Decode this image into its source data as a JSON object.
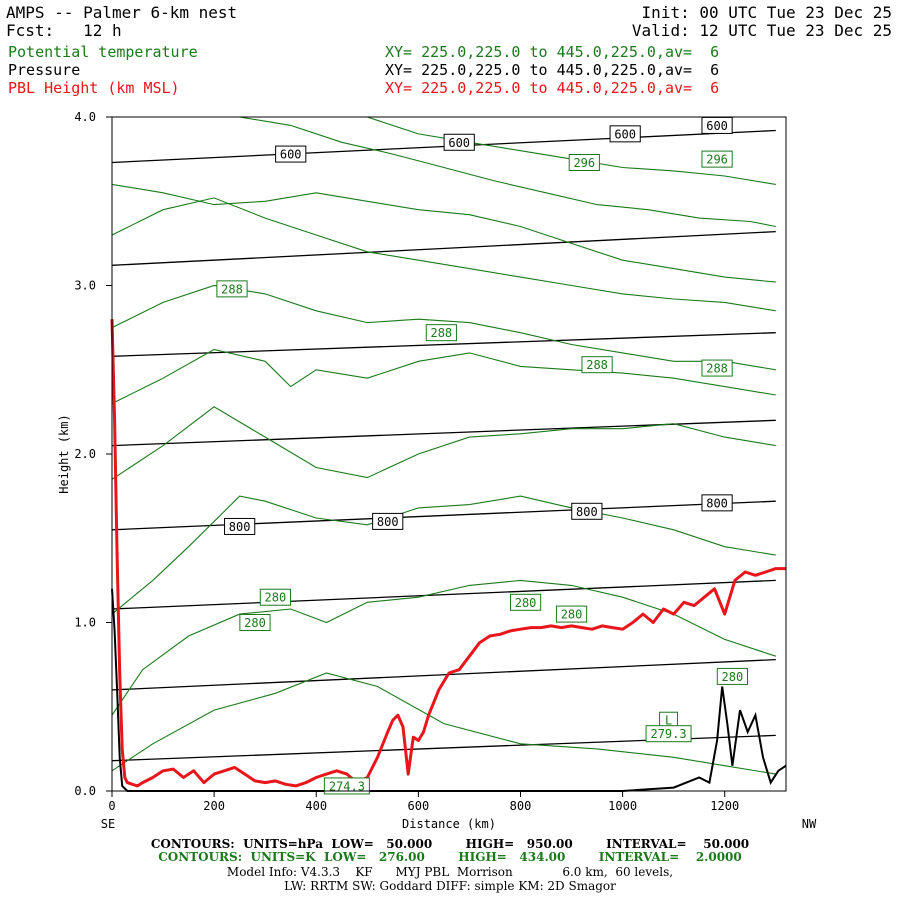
{
  "header": {
    "title": "AMPS -- Palmer 6-km nest",
    "init": "Init: 00 UTC Tue 23 Dec 25",
    "fcst": "Fcst:   12 h",
    "valid": "Valid: 12 UTC Tue 23 Dec 25",
    "field1": "Potential temperature",
    "field2": "Pressure",
    "field3": "PBL Height (km MSL)",
    "xy1": "XY= 225.0,225.0 to 445.0,225.0,av=  6",
    "xy2": "XY= 225.0,225.0 to 445.0,225.0,av=  6",
    "xy3": "XY= 225.0,225.0 to 445.0,225.0,av=  6"
  },
  "colors": {
    "theta": "#1a7a1a",
    "pressure": "#000000",
    "pbl": "#e8151a"
  },
  "footer": {
    "line1": "CONTOURS:  UNITS=hPa  LOW=   50.000        HIGH=   950.00        INTERVAL=    50.000",
    "line2": "CONTOURS:  UNITS=K  LOW=   276.00        HIGH=   434.00        INTERVAL=    2.0000",
    "line3": "Model Info: V4.3.3    KF      MYJ PBL  Morrison             6.0 km,  60 levels,",
    "line4": "LW: RRTM SW: Goddard DIFF: simple KM: 2D Smagor"
  },
  "chart_data": {
    "type": "line",
    "title": "",
    "xlabel": "Distance (km)",
    "ylabel": "Height (km)",
    "xlim": [
      0,
      1320
    ],
    "ylim": [
      0,
      4
    ],
    "xticks": [
      0,
      200,
      400,
      600,
      800,
      1000,
      1200
    ],
    "yticks": [
      0.0,
      1.0,
      2.0,
      3.0,
      4.0
    ],
    "ytick_labels": [
      "0.0",
      "1.0",
      "2.0",
      "3.0",
      "4.0"
    ],
    "x_end_labels": {
      "left": "SE",
      "right": "NW"
    },
    "pressure_contours_hPa": [
      {
        "level": 950,
        "x": [
          0,
          1300
        ],
        "y": [
          0.18,
          0.33
        ]
      },
      {
        "level": 900,
        "x": [
          0,
          1300
        ],
        "y": [
          0.6,
          0.78
        ]
      },
      {
        "level": 850,
        "x": [
          0,
          1300
        ],
        "y": [
          1.08,
          1.25
        ]
      },
      {
        "level": 800,
        "x": [
          0,
          1300
        ],
        "y": [
          1.55,
          1.72
        ]
      },
      {
        "level": 750,
        "x": [
          0,
          1300
        ],
        "y": [
          2.05,
          2.2
        ]
      },
      {
        "level": 700,
        "x": [
          0,
          1300
        ],
        "y": [
          2.58,
          2.72
        ]
      },
      {
        "level": 650,
        "x": [
          0,
          1300
        ],
        "y": [
          3.12,
          3.32
        ]
      },
      {
        "level": 600,
        "x": [
          0,
          1300
        ],
        "y": [
          3.73,
          3.92
        ]
      }
    ],
    "pressure_labels": [
      {
        "text": "600",
        "x": 350,
        "y": 3.78
      },
      {
        "text": "600",
        "x": 680,
        "y": 3.85
      },
      {
        "text": "600",
        "x": 1005,
        "y": 3.9
      },
      {
        "text": "600",
        "x": 1185,
        "y": 3.95
      },
      {
        "text": "800",
        "x": 250,
        "y": 1.57
      },
      {
        "text": "800",
        "x": 540,
        "y": 1.6
      },
      {
        "text": "800",
        "x": 930,
        "y": 1.66
      },
      {
        "text": "800",
        "x": 1185,
        "y": 1.71
      }
    ],
    "theta_contours_K": [
      {
        "x": [
          0,
          80,
          200,
          320,
          420,
          520,
          650,
          800,
          950,
          1100,
          1200,
          1300
        ],
        "y": [
          0.12,
          0.28,
          0.48,
          0.58,
          0.7,
          0.62,
          0.4,
          0.28,
          0.25,
          0.2,
          0.15,
          0.1
        ]
      },
      {
        "x": [
          0,
          60,
          150,
          250,
          350,
          420,
          500,
          600,
          700,
          800,
          900,
          1000,
          1100,
          1200,
          1300
        ],
        "y": [
          0.45,
          0.72,
          0.92,
          1.05,
          1.08,
          1.0,
          1.12,
          1.15,
          1.22,
          1.25,
          1.22,
          1.15,
          1.05,
          0.9,
          0.8
        ]
      },
      {
        "x": [
          0,
          80,
          150,
          250,
          300,
          400,
          500,
          600,
          700,
          800,
          900,
          1000,
          1100,
          1200,
          1300
        ],
        "y": [
          1.05,
          1.25,
          1.45,
          1.75,
          1.72,
          1.62,
          1.58,
          1.68,
          1.7,
          1.75,
          1.68,
          1.62,
          1.55,
          1.45,
          1.4
        ]
      },
      {
        "x": [
          0,
          100,
          200,
          300,
          400,
          500,
          600,
          700,
          800,
          900,
          1000,
          1100,
          1200,
          1300
        ],
        "y": [
          1.85,
          2.05,
          2.28,
          2.1,
          1.92,
          1.86,
          2.0,
          2.1,
          2.12,
          2.15,
          2.15,
          2.18,
          2.1,
          2.05
        ]
      },
      {
        "x": [
          0,
          100,
          200,
          300,
          350,
          400,
          500,
          600,
          700,
          800,
          900,
          1000,
          1100,
          1200,
          1300
        ],
        "y": [
          2.3,
          2.45,
          2.62,
          2.55,
          2.4,
          2.5,
          2.45,
          2.55,
          2.6,
          2.52,
          2.5,
          2.48,
          2.45,
          2.4,
          2.35
        ]
      },
      {
        "x": [
          0,
          100,
          200,
          300,
          400,
          500,
          600,
          700,
          800,
          900,
          1000,
          1100,
          1200,
          1300
        ],
        "y": [
          2.75,
          2.9,
          3.0,
          2.95,
          2.85,
          2.78,
          2.8,
          2.78,
          2.72,
          2.65,
          2.6,
          2.55,
          2.55,
          2.5
        ]
      },
      {
        "x": [
          0,
          100,
          200,
          300,
          400,
          500,
          600,
          700,
          800,
          900,
          1000,
          1100,
          1200,
          1300
        ],
        "y": [
          3.3,
          3.45,
          3.52,
          3.4,
          3.3,
          3.2,
          3.15,
          3.1,
          3.05,
          3.0,
          2.95,
          2.92,
          2.9,
          2.85
        ]
      },
      {
        "x": [
          0,
          100,
          200,
          300,
          400,
          500,
          600,
          700,
          800,
          900,
          1000,
          1100,
          1200,
          1300
        ],
        "y": [
          3.6,
          3.55,
          3.48,
          3.5,
          3.55,
          3.5,
          3.45,
          3.42,
          3.35,
          3.25,
          3.15,
          3.1,
          3.05,
          3.02
        ]
      },
      {
        "x": [
          250,
          350,
          450,
          550,
          650,
          750,
          850,
          950,
          1050,
          1150,
          1250,
          1300
        ],
        "y": [
          4.0,
          3.95,
          3.85,
          3.78,
          3.7,
          3.62,
          3.55,
          3.48,
          3.45,
          3.4,
          3.38,
          3.35
        ]
      },
      {
        "x": [
          500,
          600,
          700,
          800,
          900,
          1000,
          1100,
          1200,
          1300
        ],
        "y": [
          4.0,
          3.9,
          3.85,
          3.8,
          3.75,
          3.7,
          3.68,
          3.65,
          3.6
        ]
      }
    ],
    "theta_labels": [
      {
        "text": "296",
        "x": 925,
        "y": 3.73
      },
      {
        "text": "296",
        "x": 1185,
        "y": 3.75
      },
      {
        "text": "288",
        "x": 235,
        "y": 2.98
      },
      {
        "text": "288",
        "x": 645,
        "y": 2.72
      },
      {
        "text": "288",
        "x": 950,
        "y": 2.53
      },
      {
        "text": "288",
        "x": 1185,
        "y": 2.51
      },
      {
        "text": "280",
        "x": 320,
        "y": 1.15
      },
      {
        "text": "280",
        "x": 280,
        "y": 1.0
      },
      {
        "text": "280",
        "x": 810,
        "y": 1.12
      },
      {
        "text": "280",
        "x": 900,
        "y": 1.05
      },
      {
        "text": "280",
        "x": 1215,
        "y": 0.68
      },
      {
        "text": "L",
        "x": 1090,
        "y": 0.42
      },
      {
        "text": "279.3",
        "x": 1090,
        "y": 0.34
      },
      {
        "text": "274.3",
        "x": 460,
        "y": 0.03
      }
    ],
    "pbl_height_km": {
      "x": [
        0,
        5,
        10,
        15,
        20,
        25,
        30,
        40,
        50,
        60,
        80,
        100,
        120,
        140,
        160,
        180,
        200,
        220,
        240,
        260,
        280,
        300,
        320,
        340,
        360,
        380,
        400,
        420,
        440,
        460,
        480,
        500,
        520,
        540,
        550,
        560,
        570,
        580,
        590,
        600,
        610,
        620,
        640,
        660,
        680,
        700,
        720,
        740,
        760,
        780,
        800,
        820,
        840,
        860,
        880,
        900,
        920,
        940,
        960,
        980,
        1000,
        1020,
        1040,
        1060,
        1080,
        1100,
        1120,
        1140,
        1160,
        1180,
        1200,
        1220,
        1240,
        1260,
        1280,
        1300,
        1320
      ],
      "y": [
        2.8,
        2.2,
        1.4,
        0.7,
        0.25,
        0.08,
        0.05,
        0.04,
        0.03,
        0.05,
        0.08,
        0.12,
        0.13,
        0.08,
        0.12,
        0.05,
        0.1,
        0.12,
        0.14,
        0.1,
        0.06,
        0.05,
        0.06,
        0.04,
        0.03,
        0.05,
        0.08,
        0.1,
        0.12,
        0.1,
        0.05,
        0.08,
        0.2,
        0.35,
        0.42,
        0.45,
        0.38,
        0.1,
        0.32,
        0.3,
        0.35,
        0.45,
        0.6,
        0.7,
        0.72,
        0.8,
        0.88,
        0.92,
        0.93,
        0.95,
        0.96,
        0.97,
        0.97,
        0.98,
        0.97,
        0.98,
        0.97,
        0.96,
        0.98,
        0.97,
        0.96,
        1.0,
        1.05,
        1.0,
        1.08,
        1.05,
        1.12,
        1.1,
        1.15,
        1.2,
        1.05,
        1.25,
        1.3,
        1.28,
        1.3,
        1.32,
        1.32
      ]
    },
    "terrain_km": {
      "x": [
        0,
        5,
        10,
        15,
        20,
        30,
        50,
        100,
        200,
        400,
        600,
        800,
        1000,
        1100,
        1150,
        1170,
        1185,
        1195,
        1205,
        1215,
        1230,
        1245,
        1260,
        1275,
        1290,
        1305,
        1320
      ],
      "y": [
        1.2,
        0.95,
        0.6,
        0.2,
        0.03,
        0.0,
        0.0,
        0.0,
        0.0,
        0.0,
        0.0,
        0.0,
        0.0,
        0.02,
        0.08,
        0.05,
        0.3,
        0.62,
        0.4,
        0.15,
        0.48,
        0.35,
        0.45,
        0.2,
        0.05,
        0.12,
        0.15
      ]
    }
  }
}
